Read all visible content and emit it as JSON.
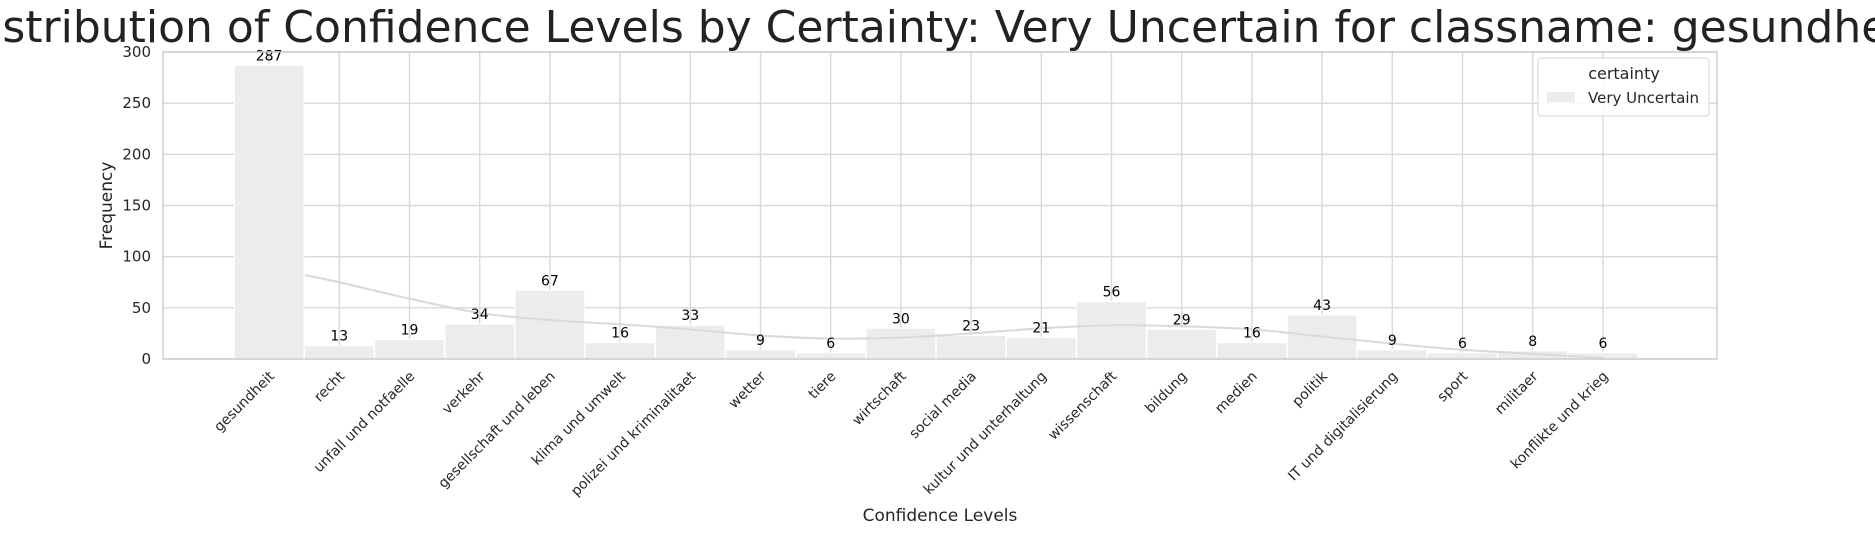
{
  "chart_data": {
    "type": "bar",
    "title": "Distribution of Confidence Levels by Certainty: Very Uncertain for classname: gesundheit",
    "xlabel": "Confidence Levels",
    "ylabel": "Frequency",
    "ylim": [
      0,
      300
    ],
    "yticks": [
      "0",
      "50",
      "100",
      "150",
      "200",
      "250",
      "300"
    ],
    "categories": [
      "gesundheit",
      "recht",
      "unfall und notfaelle",
      "verkehr",
      "gesellschaft und leben",
      "klima und umwelt",
      "polizei und kriminalitaet",
      "wetter",
      "tiere",
      "wirtschaft",
      "social media",
      "kultur und unterhaltung",
      "wissenschaft",
      "bildung",
      "medien",
      "politik",
      "IT und digitalisierung",
      "sport",
      "militaer",
      "konflikte und krieg"
    ],
    "series": [
      {
        "name": "Very Uncertain",
        "values": [
          287,
          13,
          19,
          34,
          67,
          16,
          33,
          9,
          6,
          30,
          23,
          21,
          56,
          29,
          16,
          43,
          9,
          6,
          8,
          6
        ],
        "labels": [
          "287",
          "13",
          "19",
          "34",
          "67",
          "16",
          "33",
          "9",
          "6",
          "30",
          "23",
          "21",
          "56",
          "29",
          "16",
          "43",
          "9",
          "6",
          "8",
          "6"
        ],
        "kde": [
          82,
          75,
          59,
          45,
          38,
          34,
          29,
          23,
          20,
          21,
          25,
          30,
          33,
          32,
          29,
          22,
          15,
          9,
          5,
          1
        ]
      }
    ],
    "grid": true,
    "legend": {
      "title": "certainty",
      "position": "top-right"
    },
    "colors": {
      "bar": "#ececec",
      "bar_edge": "#ffffff",
      "kde": "#d9d9d9",
      "grid": "#d9d9d9",
      "frame": "#cccccc"
    }
  }
}
